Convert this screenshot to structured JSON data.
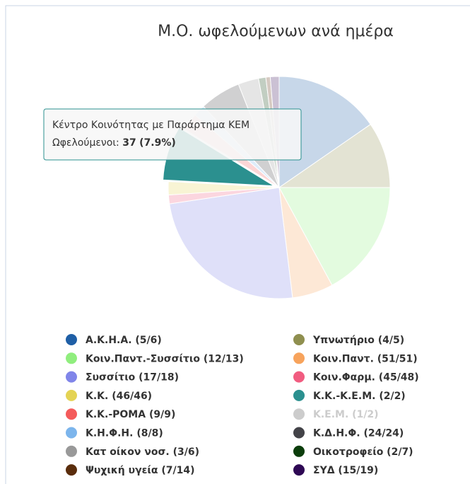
{
  "chart_data": {
    "type": "pie",
    "title": "Μ.Ο. ωφελούμενων ανά ημέρα",
    "categories": [
      "Α.Κ.Η.Α. (5/6)",
      "Υπνωτήριο (4/5)",
      "Κοιν.Παντ.-Συσσίτιο (12/13)",
      "Κοιν.Παντ. (51/51)",
      "Συσσίτιο (17/18)",
      "Κοιν.Φαρμ. (45/48)",
      "Κ.Κ. (46/46)",
      "Κ.Κ.-Κ.Ε.Μ. (2/2)",
      "Κ.Κ.-ΡΟΜΑ (9/9)",
      "Κ.Ε.Μ. (1/2)",
      "Κ.Η.Φ.Η. (8/8)",
      "Κ.Δ.Η.Φ. (24/24)",
      "Κατ οίκον νοσ. (3/6)",
      "Οικοτροφείο (2/7)",
      "Ψυχική υγεία (7/14)",
      "ΣΥΔ (15/19)"
    ],
    "values": [
      72,
      45,
      80,
      28,
      115,
      6,
      9,
      37,
      12,
      null,
      8,
      28,
      14,
      5,
      3,
      6
    ],
    "colors": [
      "#1f5fa6",
      "#8f8f4f",
      "#90ee7e",
      "#f7a35c",
      "#8085e9",
      "#f15c80",
      "#e4d354",
      "#2b908f",
      "#f45b5b",
      "#cccccc",
      "#7cb5ec",
      "#434348",
      "#999999",
      "#0b3d0b",
      "#5a2d0c",
      "#2e0854"
    ],
    "hidden": [
      9
    ],
    "highlighted": 7,
    "tooltip": {
      "title": "Κέντρο Κοινότητας με Παράρτημα ΚΕΜ",
      "label": "Ωφελούμενοι:",
      "value_label": "(7.9%)"
    }
  }
}
